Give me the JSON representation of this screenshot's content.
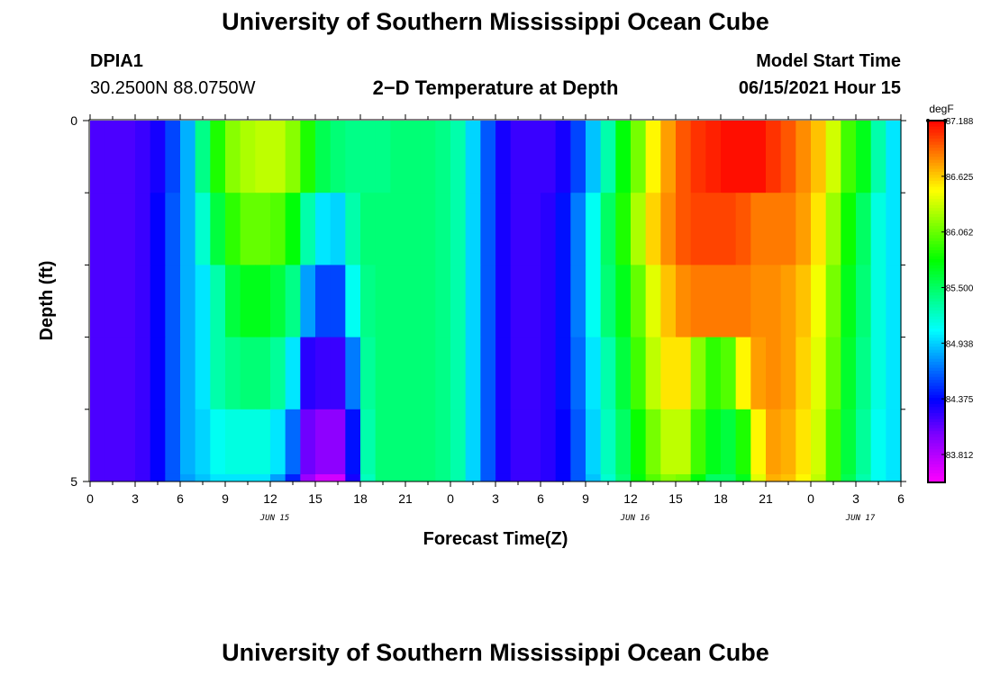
{
  "header": {
    "title_top": "University of Southern Mississippi Ocean Cube",
    "station_id": "DPIA1",
    "coords": "30.2500N  88.0750W",
    "plot_title": "2−D Temperature at Depth",
    "model_label": "Model Start Time",
    "model_time": "06/15/2021 Hour 15",
    "title_bottom": "University of Southern Mississippi Ocean Cube"
  },
  "chart_data": {
    "type": "heatmap",
    "title": "2-D Temperature at Depth",
    "xlabel": "Forecast Time(Z)",
    "ylabel": "Depth (ft)",
    "units": "degF",
    "x_range_hours": [
      0,
      54
    ],
    "x_tick_step_hours": 1.5,
    "x_major_every_hours": 3,
    "x_tick_labels": [
      "0",
      "3",
      "6",
      "9",
      "12",
      "15",
      "18",
      "21",
      "0",
      "3",
      "6",
      "9",
      "12",
      "15",
      "18",
      "21",
      "0",
      "3",
      "6"
    ],
    "day_labels": [
      {
        "text": "JUN 15",
        "hour": 12.3
      },
      {
        "text": "JUN 16",
        "hour": 36.3
      },
      {
        "text": "JUN 17",
        "hour": 51.3
      }
    ],
    "y_range": [
      0,
      5
    ],
    "y_tick_labels": [
      "0",
      "5"
    ],
    "y_minor_ticks": [
      1,
      2,
      3,
      4
    ],
    "colorbar": {
      "min": 83.53,
      "max": 87.188,
      "labels": [
        "87.188",
        "86.625",
        "86.062",
        "85.500",
        "84.938",
        "84.375",
        "83.812"
      ],
      "label_values": [
        87.188,
        86.625,
        86.062,
        85.5,
        84.938,
        84.375,
        83.812
      ]
    },
    "time_step_hours": 1,
    "depth_layers": [
      {
        "depth_range": [
          0,
          1
        ],
        "values": [
          84.15,
          84.15,
          84.15,
          84.2,
          84.3,
          84.55,
          84.85,
          85.4,
          85.85,
          86.15,
          86.25,
          86.3,
          86.3,
          86.15,
          85.85,
          85.55,
          85.45,
          85.4,
          85.4,
          85.4,
          85.45,
          85.45,
          85.45,
          85.4,
          85.3,
          84.95,
          84.6,
          84.3,
          84.2,
          84.2,
          84.2,
          84.3,
          84.55,
          84.9,
          85.3,
          85.75,
          86.1,
          86.5,
          86.75,
          86.95,
          87.05,
          87.1,
          87.15,
          87.15,
          87.15,
          87.05,
          86.95,
          86.8,
          86.65,
          86.35,
          85.95,
          85.7,
          85.3,
          85.0,
          84.9
        ]
      },
      {
        "depth_range": [
          1,
          2
        ],
        "values": [
          84.15,
          84.15,
          84.15,
          84.2,
          84.35,
          84.6,
          84.85,
          85.2,
          85.6,
          85.9,
          86.05,
          86.05,
          86.0,
          85.75,
          85.3,
          85.0,
          84.95,
          85.3,
          85.45,
          85.45,
          85.45,
          85.45,
          85.45,
          85.4,
          85.3,
          84.95,
          84.6,
          84.3,
          84.2,
          84.2,
          84.25,
          84.4,
          84.7,
          85.1,
          85.5,
          85.85,
          86.25,
          86.6,
          86.8,
          86.95,
          87.0,
          87.0,
          87.0,
          86.95,
          86.85,
          86.85,
          86.85,
          86.75,
          86.55,
          86.2,
          85.8,
          85.5,
          85.15,
          85.0,
          84.9
        ]
      },
      {
        "depth_range": [
          2,
          3
        ],
        "values": [
          84.15,
          84.15,
          84.15,
          84.2,
          84.35,
          84.6,
          84.85,
          85.0,
          85.3,
          85.6,
          85.7,
          85.7,
          85.6,
          85.4,
          84.8,
          84.55,
          84.55,
          85.1,
          85.4,
          85.45,
          85.45,
          85.45,
          85.45,
          85.4,
          85.3,
          84.95,
          84.6,
          84.3,
          84.2,
          84.2,
          84.25,
          84.4,
          84.7,
          85.1,
          85.45,
          85.7,
          86.05,
          86.4,
          86.65,
          86.8,
          86.85,
          86.85,
          86.85,
          86.85,
          86.8,
          86.8,
          86.75,
          86.65,
          86.45,
          86.1,
          85.7,
          85.45,
          85.15,
          85.0,
          84.9
        ]
      },
      {
        "depth_range": [
          3,
          4
        ],
        "values": [
          84.15,
          84.15,
          84.15,
          84.2,
          84.35,
          84.6,
          84.85,
          85.0,
          85.3,
          85.4,
          85.45,
          85.45,
          85.35,
          85.0,
          84.25,
          84.2,
          84.2,
          84.7,
          85.35,
          85.45,
          85.45,
          85.45,
          85.45,
          85.4,
          85.3,
          84.95,
          84.6,
          84.3,
          84.2,
          84.2,
          84.25,
          84.4,
          84.65,
          85.0,
          85.3,
          85.6,
          85.95,
          86.3,
          86.55,
          86.55,
          86.15,
          85.9,
          86.0,
          86.5,
          86.75,
          86.8,
          86.75,
          86.6,
          86.4,
          86.05,
          85.65,
          85.4,
          85.15,
          85.0,
          84.9
        ]
      },
      {
        "depth_range": [
          4,
          5
        ],
        "values": [
          84.15,
          84.15,
          84.15,
          84.2,
          84.35,
          84.6,
          84.85,
          84.95,
          85.1,
          85.15,
          85.15,
          85.15,
          85.0,
          84.65,
          84.05,
          83.95,
          83.95,
          84.4,
          85.3,
          85.45,
          85.45,
          85.45,
          85.45,
          85.4,
          85.3,
          84.95,
          84.6,
          84.3,
          84.2,
          84.2,
          84.25,
          84.35,
          84.6,
          84.95,
          85.25,
          85.5,
          85.8,
          86.1,
          86.3,
          86.3,
          85.95,
          85.7,
          85.6,
          85.85,
          86.5,
          86.75,
          86.7,
          86.55,
          86.35,
          85.95,
          85.6,
          85.35,
          85.1,
          85.0,
          84.9
        ]
      },
      {
        "depth_range": [
          4.9,
          5
        ],
        "values": [
          84.15,
          84.15,
          84.15,
          84.2,
          84.35,
          84.6,
          84.8,
          84.9,
          85.0,
          85.0,
          85.0,
          85.0,
          84.8,
          84.45,
          83.9,
          83.7,
          83.7,
          84.3,
          85.25,
          85.45,
          85.45,
          85.45,
          85.45,
          85.4,
          85.3,
          84.95,
          84.6,
          84.3,
          84.2,
          84.2,
          84.25,
          84.35,
          84.6,
          84.9,
          85.2,
          85.45,
          85.75,
          86.0,
          86.15,
          86.1,
          85.75,
          85.5,
          85.5,
          85.7,
          86.4,
          86.7,
          86.65,
          86.5,
          86.3,
          85.95,
          85.55,
          85.3,
          85.1,
          85.0,
          84.9
        ]
      }
    ]
  }
}
